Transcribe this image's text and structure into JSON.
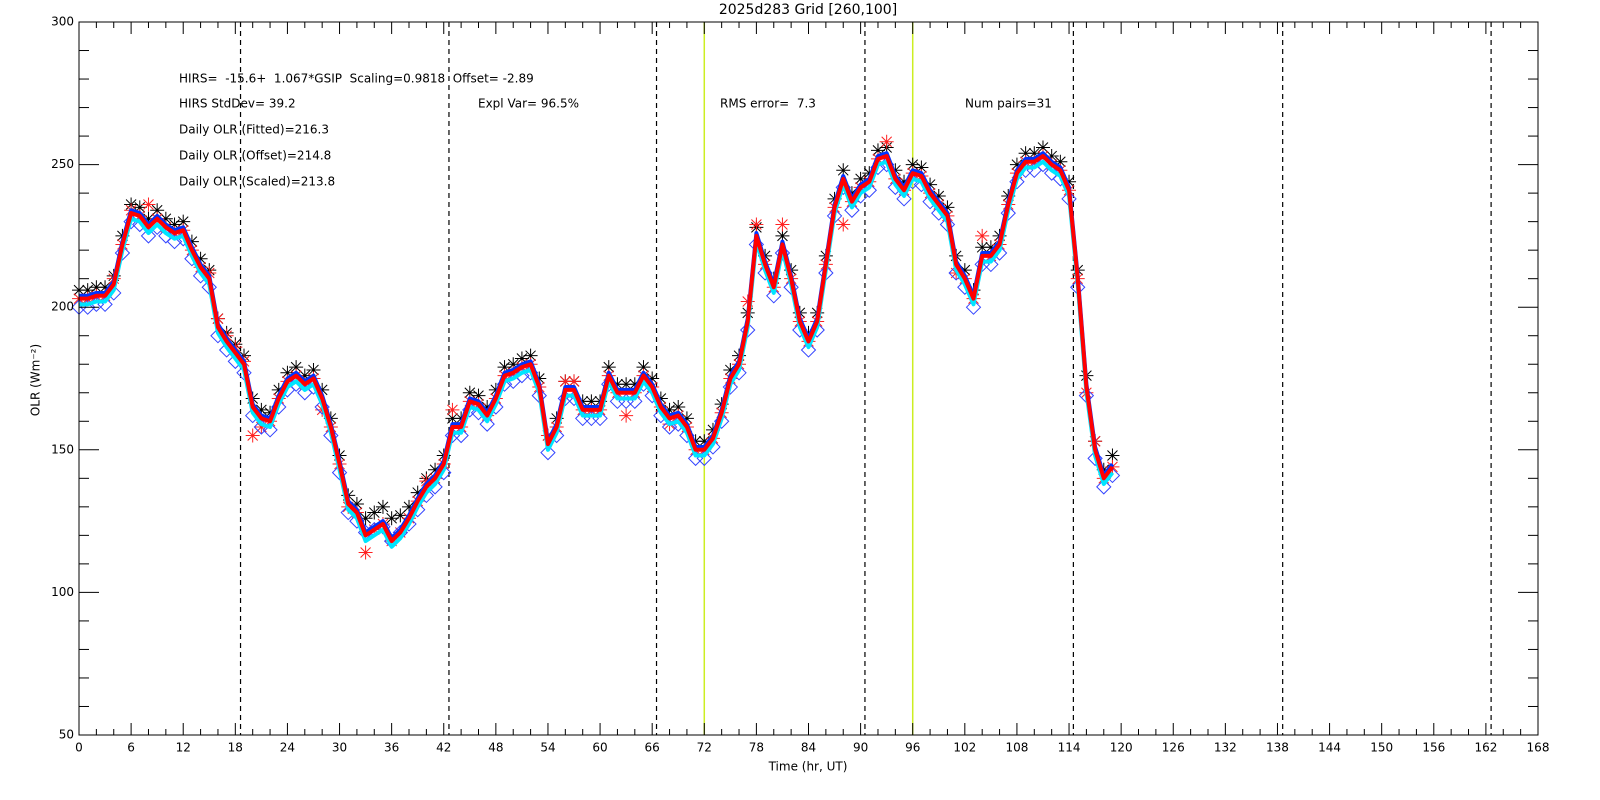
{
  "chart_data": {
    "type": "line",
    "title": "2025d283 Grid [260,100]",
    "xlabel": "Time (hr, UT)",
    "ylabel": "OLR (Wm⁻²)",
    "annotations": [
      "HIRS=  -15.6+  1.067*GSIP  Scaling=0.9818  Offset= -2.89",
      "HIRS StdDev= 39.2",
      "Expl Var= 96.5%",
      "RMS error=  7.3",
      "Num pairs=31",
      "Daily OLR (Fitted)=216.3",
      "Daily OLR (Offset)=214.8",
      "Daily OLR (Scaled)=213.8"
    ],
    "xlim": [
      0,
      168
    ],
    "ylim": [
      50,
      300
    ],
    "xticks": [
      0,
      6,
      12,
      18,
      24,
      30,
      36,
      42,
      48,
      54,
      60,
      66,
      72,
      78,
      84,
      90,
      96,
      102,
      108,
      114,
      120,
      126,
      132,
      138,
      144,
      150,
      156,
      162,
      168
    ],
    "yticks": [
      50,
      100,
      150,
      200,
      250,
      300
    ],
    "xminorticks": [
      2,
      4,
      8,
      10,
      14,
      16,
      20,
      22,
      26,
      28,
      32,
      34,
      38,
      40,
      44,
      46,
      50,
      52,
      56,
      58,
      62,
      64,
      68,
      70,
      74,
      76,
      80,
      82,
      86,
      88,
      92,
      94,
      98,
      100,
      104,
      106,
      110,
      112,
      116,
      118,
      122,
      124,
      128,
      130,
      134,
      136,
      140,
      142,
      146,
      148,
      152,
      154,
      158,
      160,
      164,
      166
    ],
    "yminorticks": [
      60,
      70,
      80,
      90,
      110,
      120,
      130,
      140,
      160,
      170,
      180,
      190,
      210,
      220,
      230,
      240,
      260,
      270,
      280,
      290
    ],
    "vlines": [
      {
        "x": 18.6,
        "color": "#000000",
        "dashed": true
      },
      {
        "x": 42.6,
        "color": "#000000",
        "dashed": true
      },
      {
        "x": 66.5,
        "color": "#000000",
        "dashed": true
      },
      {
        "x": 90.5,
        "color": "#000000",
        "dashed": true
      },
      {
        "x": 114.5,
        "color": "#000000",
        "dashed": true
      },
      {
        "x": 138.6,
        "color": "#000000",
        "dashed": true
      },
      {
        "x": 162.6,
        "color": "#000000",
        "dashed": true
      },
      {
        "x": 72,
        "color": "#ccee22",
        "dashed": false
      },
      {
        "x": 96,
        "color": "#ccee22",
        "dashed": false
      }
    ],
    "x": [
      0,
      1,
      2,
      3,
      4,
      5,
      6,
      7,
      8,
      9,
      10,
      11,
      12,
      13,
      14,
      15,
      16,
      17,
      18,
      19,
      20,
      21,
      22,
      23,
      24,
      25,
      26,
      27,
      28,
      29,
      30,
      31,
      32,
      33,
      34,
      35,
      36,
      37,
      38,
      39,
      40,
      41,
      42,
      43,
      44,
      45,
      46,
      47,
      48,
      49,
      50,
      51,
      52,
      53,
      54,
      55,
      56,
      57,
      58,
      59,
      60,
      61,
      62,
      63,
      64,
      65,
      66,
      67,
      68,
      69,
      70,
      71,
      72,
      73,
      74,
      75,
      76,
      77,
      78,
      79,
      80,
      81,
      82,
      83,
      84,
      85,
      86,
      87,
      88,
      89,
      90,
      91,
      92,
      93,
      94,
      95,
      96,
      97,
      98,
      99,
      100,
      101,
      102,
      103,
      104,
      105,
      106,
      107,
      108,
      109,
      110,
      111,
      112,
      113,
      114,
      115,
      116,
      117,
      118,
      119
    ],
    "series": [
      {
        "style": "asterisk",
        "color": "#000000",
        "values": [
          206,
          206,
          207,
          207,
          211,
          225,
          236,
          235,
          231,
          234,
          231,
          229,
          230,
          223,
          217,
          213,
          196,
          191,
          187,
          183,
          168,
          164,
          163,
          171,
          177,
          179,
          176,
          178,
          171,
          161,
          148,
          134,
          131,
          126,
          128,
          130,
          126,
          127,
          130,
          135,
          140,
          143,
          148,
          161,
          161,
          170,
          169,
          165,
          171,
          179,
          180,
          182,
          183,
          175,
          155,
          161,
          174,
          174,
          167,
          167,
          167,
          179,
          173,
          173,
          173,
          179,
          175,
          168,
          164,
          165,
          161,
          153,
          153,
          157,
          166,
          178,
          183,
          198,
          228,
          218,
          210,
          225,
          213,
          198,
          191,
          198,
          218,
          238,
          248,
          240,
          245,
          247,
          255,
          256,
          248,
          244,
          250,
          249,
          243,
          239,
          235,
          218,
          213,
          206,
          221,
          221,
          225,
          239,
          250,
          254,
          254,
          256,
          253,
          251,
          244,
          213,
          176,
          153,
          143,
          148
        ]
      },
      {
        "style": "asterisk",
        "color": "#ff2020",
        "values": [
          203,
          203,
          204,
          204,
          210,
          222,
          234,
          232,
          236,
          231,
          228,
          226,
          227,
          220,
          214,
          212,
          196,
          190,
          186,
          181,
          155,
          158,
          160,
          168,
          174,
          176,
          173,
          175,
          164,
          158,
          145,
          130,
          128,
          114,
          122,
          124,
          118,
          121,
          126,
          132,
          139,
          140,
          145,
          164,
          158,
          167,
          166,
          162,
          168,
          176,
          177,
          179,
          180,
          172,
          155,
          158,
          174,
          174,
          164,
          164,
          164,
          176,
          170,
          162,
          170,
          176,
          172,
          165,
          159,
          162,
          158,
          150,
          150,
          154,
          163,
          175,
          180,
          202,
          229,
          215,
          207,
          229,
          210,
          195,
          188,
          195,
          215,
          235,
          229,
          237,
          242,
          244,
          252,
          258,
          245,
          241,
          247,
          246,
          240,
          236,
          232,
          212,
          210,
          203,
          225,
          218,
          222,
          236,
          247,
          251,
          251,
          253,
          250,
          248,
          241,
          210,
          170,
          153,
          140,
          144
        ]
      },
      {
        "style": "diamond",
        "color": "#3344ff",
        "values": [
          200,
          200,
          201,
          201,
          205,
          219,
          230,
          229,
          225,
          228,
          225,
          223,
          224,
          217,
          211,
          207,
          190,
          185,
          181,
          177,
          162,
          158,
          157,
          165,
          171,
          173,
          170,
          172,
          165,
          155,
          142,
          128,
          125,
          121,
          122,
          123,
          118,
          121,
          124,
          129,
          134,
          137,
          142,
          155,
          155,
          164,
          163,
          159,
          165,
          173,
          174,
          176,
          177,
          169,
          149,
          155,
          168,
          168,
          161,
          161,
          161,
          173,
          167,
          167,
          167,
          173,
          169,
          162,
          158,
          159,
          155,
          147,
          147,
          151,
          160,
          172,
          177,
          192,
          222,
          212,
          204,
          219,
          207,
          192,
          185,
          192,
          212,
          232,
          242,
          234,
          239,
          241,
          249,
          250,
          242,
          238,
          244,
          243,
          237,
          233,
          229,
          212,
          207,
          200,
          215,
          215,
          219,
          233,
          244,
          248,
          248,
          250,
          247,
          245,
          238,
          207,
          169,
          147,
          137,
          141
        ]
      },
      {
        "style": "line",
        "color": "#00e5ff",
        "values": [
          201,
          201,
          202,
          202,
          206,
          220,
          231,
          230,
          226,
          229,
          226,
          224,
          225,
          218,
          212,
          208,
          191,
          186,
          182,
          178,
          163,
          159,
          158,
          166,
          172,
          174,
          171,
          173,
          166,
          156,
          143,
          129,
          126,
          118,
          120,
          122,
          116,
          119,
          124,
          130,
          135,
          138,
          143,
          156,
          156,
          165,
          164,
          160,
          166,
          174,
          175,
          177,
          178,
          170,
          150,
          156,
          169,
          169,
          162,
          162,
          162,
          174,
          168,
          168,
          168,
          174,
          170,
          163,
          159,
          160,
          156,
          148,
          148,
          152,
          161,
          173,
          178,
          193,
          223,
          213,
          205,
          220,
          208,
          193,
          186,
          193,
          213,
          233,
          243,
          235,
          240,
          242,
          250,
          251,
          243,
          239,
          245,
          244,
          238,
          234,
          230,
          213,
          208,
          201,
          216,
          216,
          220,
          234,
          245,
          249,
          249,
          251,
          248,
          246,
          239,
          208,
          170,
          148,
          138,
          142
        ]
      },
      {
        "style": "line",
        "color": "#0033ff",
        "values": [
          204,
          204,
          205,
          205,
          209,
          223,
          234,
          233,
          229,
          232,
          229,
          227,
          228,
          221,
          215,
          211,
          194,
          189,
          185,
          181,
          166,
          162,
          161,
          169,
          175,
          177,
          174,
          176,
          169,
          159,
          146,
          132,
          129,
          121,
          123,
          125,
          119,
          122,
          127,
          133,
          138,
          141,
          146,
          159,
          159,
          168,
          167,
          163,
          169,
          177,
          178,
          180,
          181,
          173,
          153,
          159,
          172,
          172,
          165,
          165,
          165,
          177,
          171,
          171,
          171,
          177,
          173,
          166,
          162,
          163,
          159,
          151,
          151,
          155,
          164,
          176,
          181,
          196,
          226,
          216,
          208,
          223,
          211,
          196,
          189,
          196,
          216,
          236,
          246,
          238,
          243,
          245,
          253,
          254,
          246,
          242,
          248,
          247,
          241,
          237,
          233,
          216,
          211,
          204,
          219,
          219,
          223,
          237,
          248,
          252,
          252,
          254,
          251,
          249,
          242,
          211,
          173,
          151,
          141,
          145
        ]
      },
      {
        "style": "line",
        "color": "#ff0000",
        "values": [
          203,
          203,
          204,
          204,
          208,
          222,
          233,
          232,
          228,
          231,
          228,
          226,
          227,
          220,
          214,
          210,
          193,
          188,
          184,
          180,
          165,
          161,
          160,
          168,
          174,
          176,
          173,
          175,
          168,
          158,
          145,
          131,
          128,
          120,
          122,
          124,
          118,
          121,
          126,
          132,
          137,
          140,
          145,
          158,
          158,
          167,
          166,
          162,
          168,
          176,
          177,
          179,
          180,
          172,
          152,
          158,
          171,
          171,
          164,
          164,
          164,
          176,
          170,
          170,
          170,
          176,
          172,
          165,
          161,
          162,
          158,
          150,
          150,
          154,
          163,
          175,
          180,
          195,
          225,
          215,
          207,
          222,
          210,
          195,
          188,
          195,
          215,
          235,
          245,
          237,
          242,
          244,
          252,
          253,
          245,
          241,
          247,
          246,
          240,
          236,
          232,
          215,
          210,
          203,
          218,
          218,
          222,
          236,
          247,
          251,
          251,
          253,
          250,
          248,
          241,
          210,
          172,
          150,
          140,
          144
        ]
      }
    ]
  }
}
